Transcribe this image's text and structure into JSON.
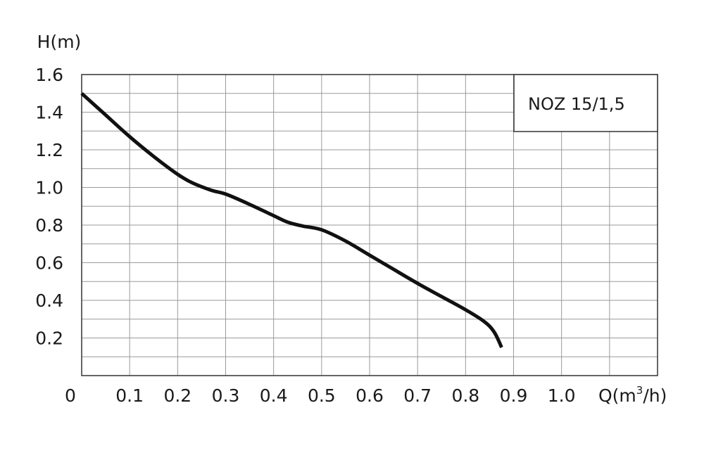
{
  "chart_data": {
    "type": "line",
    "title": "",
    "ylabel": "H(m)",
    "xlabel_prefix": "Q(m",
    "xlabel_sup": "3",
    "xlabel_suffix": "/h)",
    "xlim": [
      0,
      1.2
    ],
    "ylim": [
      0,
      1.6
    ],
    "grid": true,
    "legend_position": "top-right",
    "x_ticks": [
      0.1,
      0.2,
      0.3,
      0.4,
      0.5,
      0.6,
      0.7,
      0.8,
      0.9,
      1.0
    ],
    "x_tick_labels": [
      "0.1",
      "0.2",
      "0.3",
      "0.4",
      "0.5",
      "0.6",
      "0.7",
      "0.8",
      "0.9",
      "1.0"
    ],
    "x_origin_label": "0",
    "y_ticks": [
      0.2,
      0.4,
      0.6,
      0.8,
      1.0,
      1.2,
      1.4,
      1.6
    ],
    "y_tick_labels": [
      "0.2",
      "0.4",
      "0.6",
      "0.8",
      "1.0",
      "1.2",
      "1.4",
      "1.6"
    ],
    "series": [
      {
        "name": "NOZ 15/1,5",
        "color": "#111111",
        "x": [
          0.0,
          0.05,
          0.1,
          0.15,
          0.2,
          0.23,
          0.27,
          0.3,
          0.35,
          0.4,
          0.43,
          0.46,
          0.5,
          0.55,
          0.6,
          0.65,
          0.7,
          0.75,
          0.8,
          0.84,
          0.86,
          0.875
        ],
        "y": [
          1.5,
          1.385,
          1.27,
          1.165,
          1.07,
          1.025,
          0.985,
          0.965,
          0.91,
          0.85,
          0.815,
          0.795,
          0.775,
          0.715,
          0.64,
          0.565,
          0.49,
          0.42,
          0.35,
          0.285,
          0.23,
          0.15
        ]
      }
    ]
  }
}
